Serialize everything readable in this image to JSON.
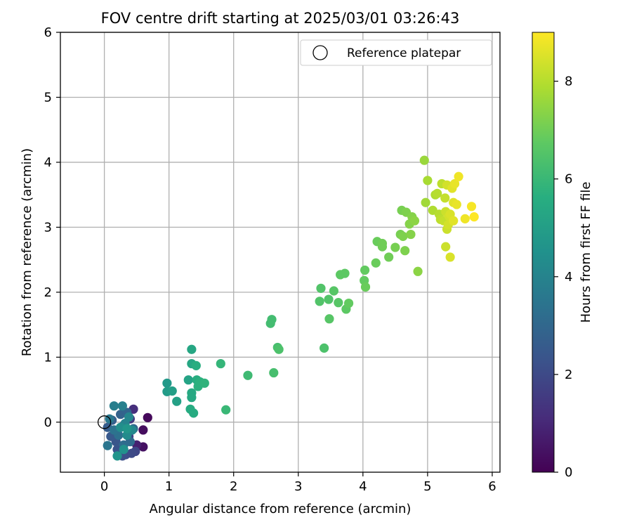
{
  "chart_data": {
    "type": "scatter",
    "title": "FOV centre drift starting at 2025/03/01 03:26:43",
    "xlabel": "Angular distance from reference (arcmin)",
    "ylabel": "Rotation from reference (arcmin)",
    "xlim": [
      -0.68,
      6.12
    ],
    "ylim": [
      -0.77,
      6.0
    ],
    "xticks": [
      0,
      1,
      2,
      3,
      4,
      5,
      6
    ],
    "yticks": [
      0,
      1,
      2,
      3,
      4,
      5,
      6
    ],
    "grid": true,
    "legend": {
      "position": "top-right",
      "entries": [
        {
          "label": "Reference platepar",
          "marker": "hollow-circle",
          "color": "#000000"
        }
      ]
    },
    "reference_point": {
      "x": 0,
      "y": 0
    },
    "colorbar": {
      "label": "Hours from first FF file",
      "colormap": "viridis",
      "range": [
        0,
        9
      ],
      "ticks": [
        0,
        2,
        4,
        6,
        8
      ]
    },
    "points": [
      {
        "x": 0.67,
        "y": 0.07,
        "c": 0.2
      },
      {
        "x": 0.6,
        "y": -0.12,
        "c": 0.3
      },
      {
        "x": 0.6,
        "y": -0.38,
        "c": 0.4
      },
      {
        "x": 0.5,
        "y": -0.35,
        "c": 0.8
      },
      {
        "x": 0.45,
        "y": 0.2,
        "c": 1.2
      },
      {
        "x": 0.4,
        "y": 0.05,
        "c": 1.5
      },
      {
        "x": 0.3,
        "y": -0.05,
        "c": 1.6
      },
      {
        "x": 0.38,
        "y": -0.22,
        "c": 1.8
      },
      {
        "x": 0.48,
        "y": -0.45,
        "c": 1.9
      },
      {
        "x": 0.42,
        "y": -0.48,
        "c": 2.0
      },
      {
        "x": 0.33,
        "y": -0.5,
        "c": 2.1
      },
      {
        "x": 0.28,
        "y": -0.52,
        "c": 2.2
      },
      {
        "x": 0.2,
        "y": -0.42,
        "c": 2.3
      },
      {
        "x": 0.18,
        "y": -0.3,
        "c": 2.4
      },
      {
        "x": 0.1,
        "y": -0.22,
        "c": 2.5
      },
      {
        "x": 0.05,
        "y": -0.08,
        "c": 2.6
      },
      {
        "x": 0.12,
        "y": 0.03,
        "c": 2.7
      },
      {
        "x": 0.25,
        "y": 0.12,
        "c": 2.8
      },
      {
        "x": 0.35,
        "y": 0.15,
        "c": 2.9
      },
      {
        "x": 0.45,
        "y": -0.1,
        "c": 3.0
      },
      {
        "x": 0.4,
        "y": -0.3,
        "c": 3.1
      },
      {
        "x": 0.3,
        "y": -0.35,
        "c": 3.2
      },
      {
        "x": 0.22,
        "y": -0.2,
        "c": 3.3
      },
      {
        "x": 0.15,
        "y": -0.12,
        "c": 3.4
      },
      {
        "x": 0.05,
        "y": -0.36,
        "c": 3.5
      },
      {
        "x": 0.08,
        "y": 0.05,
        "c": 3.6
      },
      {
        "x": 0.15,
        "y": 0.25,
        "c": 3.8
      },
      {
        "x": 0.28,
        "y": 0.25,
        "c": 3.9
      },
      {
        "x": 0.32,
        "y": -0.02,
        "c": 4.0
      },
      {
        "x": 0.38,
        "y": 0.08,
        "c": 4.1
      },
      {
        "x": 0.43,
        "y": -0.12,
        "c": 4.2
      },
      {
        "x": 0.35,
        "y": -0.2,
        "c": 4.3
      },
      {
        "x": 0.25,
        "y": -0.08,
        "c": 4.4
      },
      {
        "x": 0.3,
        "y": -0.42,
        "c": 4.5
      },
      {
        "x": 0.2,
        "y": -0.52,
        "c": 4.6
      },
      {
        "x": 0.35,
        "y": -0.1,
        "c": 4.7
      },
      {
        "x": 0.97,
        "y": 0.6,
        "c": 4.8
      },
      {
        "x": 0.97,
        "y": 0.47,
        "c": 4.9
      },
      {
        "x": 1.05,
        "y": 0.48,
        "c": 5.0
      },
      {
        "x": 1.12,
        "y": 0.32,
        "c": 5.1
      },
      {
        "x": 1.3,
        "y": 0.65,
        "c": 5.2
      },
      {
        "x": 1.35,
        "y": 1.12,
        "c": 5.3
      },
      {
        "x": 1.35,
        "y": 0.9,
        "c": 5.3
      },
      {
        "x": 1.35,
        "y": 0.45,
        "c": 5.4
      },
      {
        "x": 1.35,
        "y": 0.38,
        "c": 5.4
      },
      {
        "x": 1.33,
        "y": 0.2,
        "c": 5.5
      },
      {
        "x": 1.38,
        "y": 0.14,
        "c": 5.5
      },
      {
        "x": 1.42,
        "y": 0.87,
        "c": 5.6
      },
      {
        "x": 1.43,
        "y": 0.65,
        "c": 5.6
      },
      {
        "x": 1.45,
        "y": 0.55,
        "c": 5.7
      },
      {
        "x": 1.48,
        "y": 0.62,
        "c": 5.7
      },
      {
        "x": 1.55,
        "y": 0.6,
        "c": 5.8
      },
      {
        "x": 1.8,
        "y": 0.9,
        "c": 5.9
      },
      {
        "x": 1.88,
        "y": 0.19,
        "c": 6.0
      },
      {
        "x": 2.22,
        "y": 0.72,
        "c": 6.1
      },
      {
        "x": 2.57,
        "y": 1.52,
        "c": 6.2
      },
      {
        "x": 2.59,
        "y": 1.58,
        "c": 6.2
      },
      {
        "x": 2.62,
        "y": 0.76,
        "c": 6.3
      },
      {
        "x": 2.68,
        "y": 1.15,
        "c": 6.3
      },
      {
        "x": 2.7,
        "y": 1.12,
        "c": 6.4
      },
      {
        "x": 3.4,
        "y": 1.14,
        "c": 6.4
      },
      {
        "x": 3.33,
        "y": 1.86,
        "c": 6.5
      },
      {
        "x": 3.35,
        "y": 2.06,
        "c": 6.5
      },
      {
        "x": 3.47,
        "y": 1.89,
        "c": 6.5
      },
      {
        "x": 3.48,
        "y": 1.59,
        "c": 6.6
      },
      {
        "x": 3.55,
        "y": 2.02,
        "c": 6.6
      },
      {
        "x": 3.62,
        "y": 1.84,
        "c": 6.6
      },
      {
        "x": 3.65,
        "y": 2.27,
        "c": 6.7
      },
      {
        "x": 3.72,
        "y": 2.29,
        "c": 6.7
      },
      {
        "x": 3.74,
        "y": 1.74,
        "c": 6.7
      },
      {
        "x": 3.78,
        "y": 1.83,
        "c": 6.8
      },
      {
        "x": 4.02,
        "y": 2.18,
        "c": 6.8
      },
      {
        "x": 4.03,
        "y": 2.34,
        "c": 6.8
      },
      {
        "x": 4.04,
        "y": 2.08,
        "c": 6.9
      },
      {
        "x": 4.2,
        "y": 2.45,
        "c": 6.9
      },
      {
        "x": 4.22,
        "y": 2.78,
        "c": 6.9
      },
      {
        "x": 4.3,
        "y": 2.75,
        "c": 7.0
      },
      {
        "x": 4.3,
        "y": 2.7,
        "c": 7.0
      },
      {
        "x": 4.4,
        "y": 2.54,
        "c": 7.0
      },
      {
        "x": 4.5,
        "y": 2.69,
        "c": 7.1
      },
      {
        "x": 4.58,
        "y": 2.89,
        "c": 7.1
      },
      {
        "x": 4.6,
        "y": 3.26,
        "c": 7.1
      },
      {
        "x": 4.62,
        "y": 2.86,
        "c": 7.2
      },
      {
        "x": 4.65,
        "y": 2.64,
        "c": 7.2
      },
      {
        "x": 4.67,
        "y": 3.23,
        "c": 7.2
      },
      {
        "x": 4.72,
        "y": 3.05,
        "c": 7.3
      },
      {
        "x": 4.74,
        "y": 2.89,
        "c": 7.3
      },
      {
        "x": 4.76,
        "y": 3.16,
        "c": 7.3
      },
      {
        "x": 4.8,
        "y": 3.1,
        "c": 7.4
      },
      {
        "x": 4.85,
        "y": 2.32,
        "c": 7.4
      },
      {
        "x": 4.95,
        "y": 4.03,
        "c": 7.6
      },
      {
        "x": 4.97,
        "y": 3.38,
        "c": 7.7
      },
      {
        "x": 5.0,
        "y": 3.72,
        "c": 7.8
      },
      {
        "x": 5.08,
        "y": 3.26,
        "c": 7.9
      },
      {
        "x": 5.12,
        "y": 3.5,
        "c": 7.9
      },
      {
        "x": 5.15,
        "y": 3.52,
        "c": 8.0
      },
      {
        "x": 5.18,
        "y": 3.2,
        "c": 8.0
      },
      {
        "x": 5.2,
        "y": 3.12,
        "c": 8.1
      },
      {
        "x": 5.22,
        "y": 3.67,
        "c": 8.1
      },
      {
        "x": 5.25,
        "y": 3.1,
        "c": 8.2
      },
      {
        "x": 5.27,
        "y": 3.45,
        "c": 8.2
      },
      {
        "x": 5.28,
        "y": 2.7,
        "c": 8.3
      },
      {
        "x": 5.28,
        "y": 3.24,
        "c": 8.3
      },
      {
        "x": 5.3,
        "y": 2.97,
        "c": 8.3
      },
      {
        "x": 5.3,
        "y": 3.65,
        "c": 8.4
      },
      {
        "x": 5.32,
        "y": 3.04,
        "c": 8.4
      },
      {
        "x": 5.33,
        "y": 3.17,
        "c": 8.4
      },
      {
        "x": 5.35,
        "y": 2.54,
        "c": 8.5
      },
      {
        "x": 5.35,
        "y": 3.2,
        "c": 8.5
      },
      {
        "x": 5.38,
        "y": 3.6,
        "c": 8.6
      },
      {
        "x": 5.4,
        "y": 3.38,
        "c": 8.6
      },
      {
        "x": 5.4,
        "y": 3.1,
        "c": 8.6
      },
      {
        "x": 5.42,
        "y": 3.67,
        "c": 8.7
      },
      {
        "x": 5.45,
        "y": 3.35,
        "c": 8.7
      },
      {
        "x": 5.48,
        "y": 3.78,
        "c": 8.8
      },
      {
        "x": 5.58,
        "y": 3.13,
        "c": 8.8
      },
      {
        "x": 5.68,
        "y": 3.32,
        "c": 8.9
      },
      {
        "x": 5.72,
        "y": 3.16,
        "c": 9.0
      }
    ]
  }
}
